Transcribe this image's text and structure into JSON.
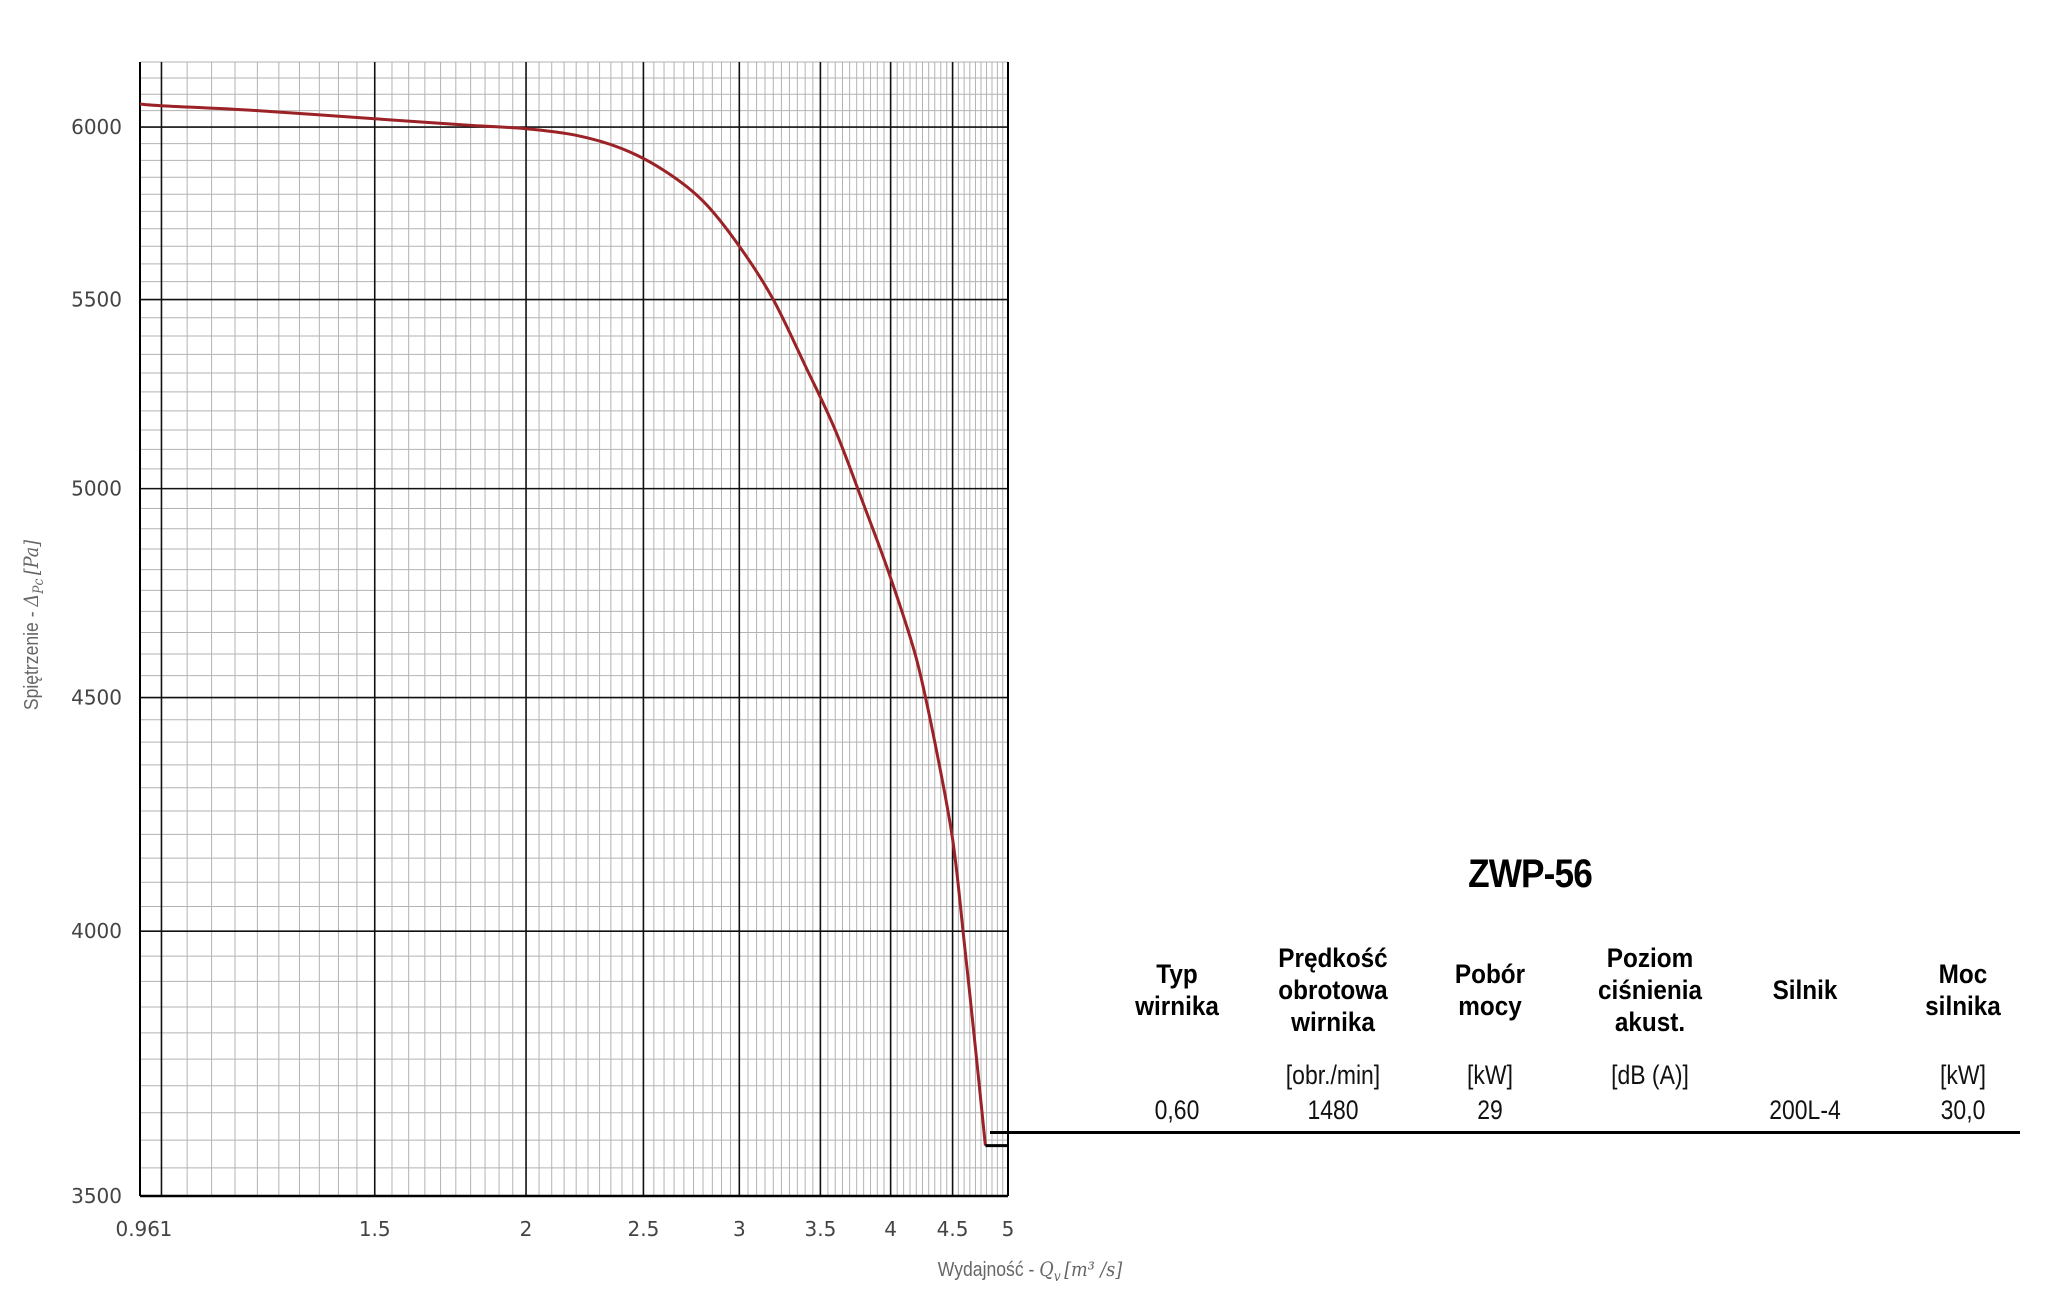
{
  "chart_data": {
    "type": "line",
    "xlabel_text": "Wydajność - ",
    "xlabel_math": "Q",
    "xlabel_sub": "v",
    "xlabel_unit": "[m³ /s]",
    "ylabel_text": "Spiętrzenie - ",
    "ylabel_math": "Δ",
    "ylabel_sub": "Pc",
    "ylabel_unit": "[Pa]",
    "x_scale": "log",
    "y_scale": "log",
    "xlim": [
      0.96,
      5
    ],
    "ylim": [
      3500,
      6200
    ],
    "x_ticks": [
      {
        "value": 0.96,
        "label": "0.96"
      },
      {
        "value": 1,
        "label": "1"
      },
      {
        "value": 1.5,
        "label": "1.5"
      },
      {
        "value": 2,
        "label": "2"
      },
      {
        "value": 2.5,
        "label": "2.5"
      },
      {
        "value": 3,
        "label": "3"
      },
      {
        "value": 3.5,
        "label": "3.5"
      },
      {
        "value": 4,
        "label": "4"
      },
      {
        "value": 4.5,
        "label": "4.5"
      },
      {
        "value": 5,
        "label": "5"
      }
    ],
    "y_ticks": [
      {
        "value": 3500,
        "label": "3500"
      },
      {
        "value": 4000,
        "label": "4000"
      },
      {
        "value": 4500,
        "label": "4500"
      },
      {
        "value": 5000,
        "label": "5000"
      },
      {
        "value": 5500,
        "label": "5500"
      },
      {
        "value": 6000,
        "label": "6000"
      }
    ],
    "grid": true,
    "series": [
      {
        "color": "#9b2226",
        "points": [
          [
            0.96,
            6070
          ],
          [
            1.0,
            6065
          ],
          [
            1.2,
            6050
          ],
          [
            1.5,
            6025
          ],
          [
            1.8,
            6005
          ],
          [
            2.0,
            5995
          ],
          [
            2.2,
            5975
          ],
          [
            2.4,
            5935
          ],
          [
            2.6,
            5870
          ],
          [
            2.8,
            5780
          ],
          [
            3.0,
            5650
          ],
          [
            3.2,
            5500
          ],
          [
            3.4,
            5320
          ],
          [
            3.6,
            5150
          ],
          [
            3.8,
            4960
          ],
          [
            4.0,
            4780
          ],
          [
            4.2,
            4590
          ],
          [
            4.35,
            4400
          ],
          [
            4.5,
            4190
          ],
          [
            4.6,
            3980
          ],
          [
            4.7,
            3770
          ],
          [
            4.79,
            3590
          ]
        ],
        "operating_line": [
          [
            4.79,
            3590
          ],
          [
            5.0,
            3590
          ]
        ]
      }
    ]
  },
  "model": {
    "title": "ZWP-56"
  },
  "spec_table": {
    "columns": [
      {
        "header": "Typ\nwirnika",
        "unit": "",
        "value": "0,60"
      },
      {
        "header": "Prędkość\nobrotowa\nwirnika",
        "unit": "[obr./min]",
        "value": "1480"
      },
      {
        "header": "Pobór\nmocy",
        "unit": "[kW]",
        "value": "29"
      },
      {
        "header": "Poziom\nciśnienia\nakust.",
        "unit": "[dB (A)]",
        "value": ""
      },
      {
        "header": "Silnik",
        "unit": "",
        "value": "200L-4"
      },
      {
        "header": "Moc\nsilnika",
        "unit": "[kW]",
        "value": "30,0"
      }
    ]
  }
}
